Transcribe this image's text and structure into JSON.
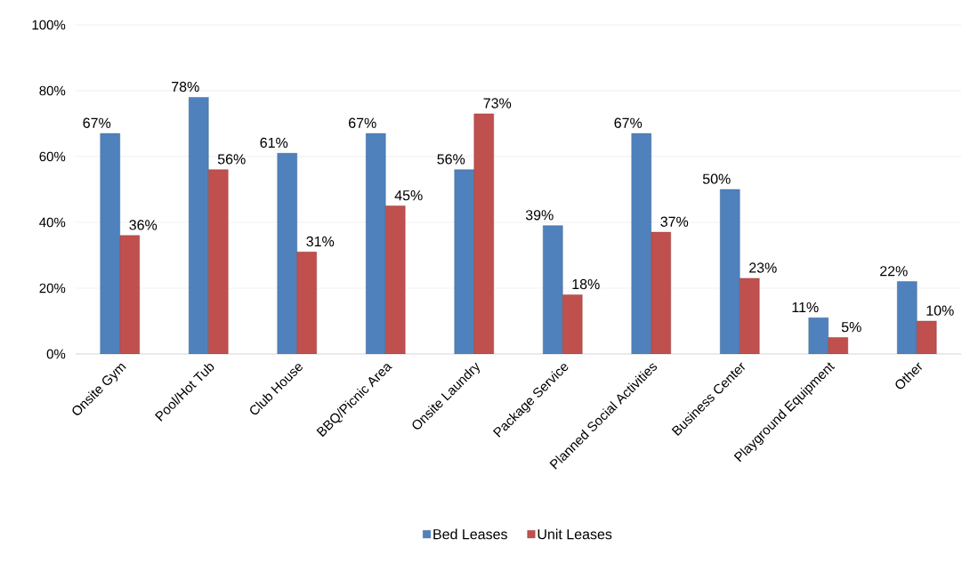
{
  "chart_data": {
    "type": "bar",
    "categories": [
      "Onsite Gym",
      "Pool/Hot Tub",
      "Club House",
      "BBQ/Picnic Area",
      "Onsite Laundry",
      "Package Service",
      "Planned Social Activities",
      "Business Center",
      "Playground Equipment",
      "Other"
    ],
    "series": [
      {
        "name": "Bed Leases",
        "color": "#4f81bd",
        "values": [
          67,
          78,
          61,
          67,
          56,
          39,
          67,
          50,
          11,
          22
        ],
        "value_labels": [
          "67%",
          "78%",
          "61%",
          "67%",
          "56%",
          "39%",
          "67%",
          "50%",
          "11%",
          "22%"
        ]
      },
      {
        "name": "Unit Leases",
        "color": "#c0504d",
        "values": [
          36,
          56,
          31,
          45,
          73,
          18,
          37,
          23,
          5,
          10
        ],
        "value_labels": [
          "36%",
          "56%",
          "31%",
          "45%",
          "73%",
          "18%",
          "37%",
          "23%",
          "5%",
          "10%"
        ]
      }
    ],
    "ylim": [
      0,
      100
    ],
    "yticks": [
      {
        "value": 0,
        "label": "0%"
      },
      {
        "value": 20,
        "label": "20%"
      },
      {
        "value": 40,
        "label": "40%"
      },
      {
        "value": 60,
        "label": "60%"
      },
      {
        "value": 80,
        "label": "80%"
      },
      {
        "value": 100,
        "label": "100%"
      }
    ],
    "grid": "y",
    "legend": "bottom"
  }
}
